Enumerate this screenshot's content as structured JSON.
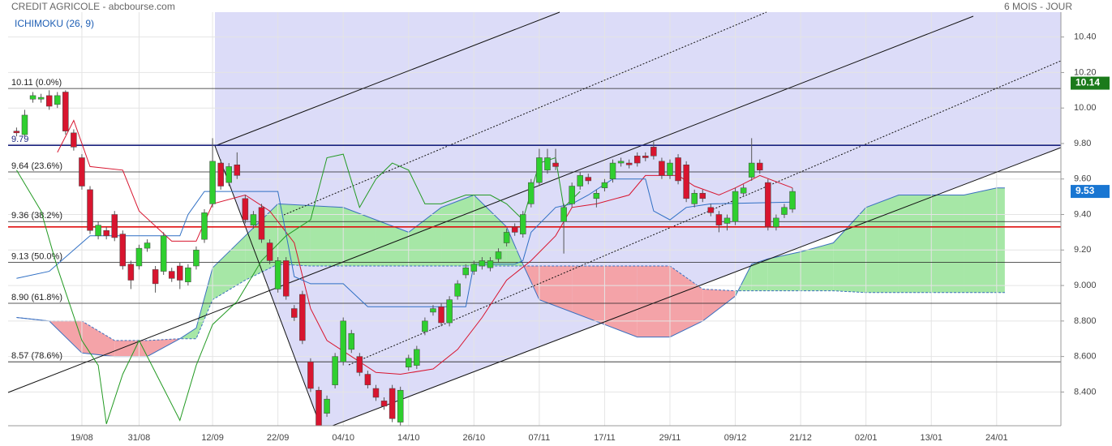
{
  "chart_data": {
    "type": "candlestick",
    "title": "CREDIT AGRICOLE - abcbourse.com",
    "period": "6 MOIS - JOUR",
    "indicator": "ICHIMOKU (26, 9)",
    "categories": [
      null,
      null,
      null,
      null,
      null,
      null,
      null,
      null,
      "19/08",
      null,
      null,
      null,
      null,
      null,
      null,
      "31/08",
      null,
      null,
      null,
      null,
      null,
      null,
      null,
      null,
      "12/09",
      null,
      null,
      null,
      null,
      null,
      null,
      null,
      "22/09",
      null,
      null,
      null,
      null,
      null,
      null,
      null,
      "04/10",
      null,
      null,
      null,
      null,
      null,
      null,
      null,
      "14/10",
      null,
      null,
      null,
      null,
      null,
      null,
      null,
      "26/10",
      null,
      null,
      null,
      null,
      null,
      null,
      null,
      "07/11",
      null,
      null,
      null,
      null,
      null,
      null,
      null,
      "17/11",
      null,
      null,
      null,
      null,
      null,
      null,
      null,
      "29/11",
      null,
      null,
      null,
      null,
      null,
      null,
      null,
      "09/12",
      null,
      null,
      null,
      null,
      null,
      null,
      null,
      "21/12",
      null,
      null,
      null,
      null,
      null,
      null,
      null,
      "02/01",
      null,
      null,
      null,
      null,
      null,
      null,
      null,
      "13/01",
      null,
      null,
      null,
      null,
      null,
      null,
      null,
      "24/01",
      null
    ],
    "open": [
      9.87,
      9.85,
      10.05,
      10.05,
      10.07,
      10.02,
      10.09,
      9.86,
      9.72,
      9.54,
      9.28,
      9.31,
      9.4,
      9.29,
      9.12,
      9.11,
      9.21,
      9.09,
      9.08,
      9.08,
      9.11,
      9.02,
      9.11,
      9.26,
      9.46,
      9.69,
      9.58,
      9.68,
      9.49,
      9.34,
      9.44,
      9.24,
      8.98,
      9.14,
      8.87,
      8.95,
      8.57,
      8.41,
      8.28,
      8.44,
      8.57,
      8.64,
      8.6,
      8.5,
      8.42,
      8.35,
      8.42,
      8.23,
      8.54,
      8.55,
      8.74,
      8.85,
      8.88,
      8.79,
      8.94,
      9.06,
      9.08,
      9.11,
      9.1,
      9.15,
      9.24,
      9.33,
      9.29,
      9.46,
      9.58,
      9.65,
      9.69,
      9.36,
      9.46,
      9.56,
      9.61,
      9.49,
      9.55,
      9.6,
      9.69,
      9.69,
      9.73,
      9.73,
      9.78,
      9.7,
      9.62,
      9.72,
      9.68,
      9.46,
      9.52,
      9.44,
      9.4,
      9.35,
      9.36,
      9.52,
      9.61,
      9.69,
      9.58,
      9.33,
      9.4,
      9.43,
      null,
      null,
      null,
      null,
      null,
      null,
      null,
      null,
      null,
      null,
      null,
      null,
      null,
      null,
      null,
      null,
      null,
      null,
      null,
      null,
      null,
      null,
      null,
      null,
      null,
      null
    ],
    "high": [
      9.89,
      9.99,
      10.09,
      10.08,
      10.1,
      10.09,
      10.1,
      9.88,
      9.74,
      9.56,
      9.36,
      9.33,
      9.42,
      9.31,
      9.14,
      9.23,
      9.26,
      9.11,
      9.3,
      9.1,
      9.13,
      9.12,
      9.22,
      9.43,
      9.83,
      9.71,
      9.69,
      9.75,
      9.51,
      9.42,
      9.46,
      9.26,
      9.16,
      9.16,
      8.89,
      8.97,
      8.59,
      8.43,
      8.38,
      8.62,
      8.82,
      8.75,
      8.62,
      8.52,
      8.44,
      8.37,
      8.44,
      8.43,
      8.61,
      8.66,
      8.82,
      8.89,
      8.9,
      8.94,
      9.03,
      9.12,
      9.14,
      9.16,
      9.16,
      9.21,
      9.32,
      9.35,
      9.42,
      9.6,
      9.77,
      9.77,
      9.77,
      9.46,
      9.58,
      9.64,
      9.63,
      9.54,
      9.6,
      9.71,
      9.72,
      9.71,
      9.75,
      9.75,
      9.81,
      9.72,
      9.71,
      9.74,
      9.7,
      9.54,
      9.54,
      9.46,
      9.42,
      9.4,
      9.55,
      9.57,
      9.83,
      9.71,
      9.6,
      9.4,
      9.46,
      9.55,
      null,
      null,
      null,
      null,
      null,
      null,
      null,
      null,
      null,
      null,
      null,
      null,
      null,
      null,
      null,
      null,
      null,
      null,
      null,
      null,
      null,
      null,
      null,
      null,
      null,
      null
    ],
    "low": [
      9.84,
      9.84,
      10.03,
      10.03,
      9.99,
      10.0,
      9.85,
      9.76,
      9.54,
      9.29,
      9.26,
      9.26,
      9.25,
      9.09,
      8.98,
      9.09,
      9.19,
      8.96,
      9.06,
      9.02,
      8.98,
      9.0,
      9.09,
      9.24,
      9.44,
      9.54,
      9.56,
      9.6,
      9.35,
      9.32,
      9.24,
      9.12,
      8.96,
      8.92,
      8.8,
      8.67,
      8.4,
      8.21,
      8.26,
      8.42,
      8.55,
      8.62,
      8.49,
      8.42,
      8.35,
      8.3,
      8.23,
      8.21,
      8.52,
      8.53,
      8.72,
      8.83,
      8.77,
      8.77,
      8.92,
      9.04,
      9.06,
      9.09,
      9.08,
      9.13,
      9.22,
      9.28,
      9.27,
      9.44,
      9.56,
      9.63,
      9.65,
      9.18,
      9.44,
      9.54,
      9.57,
      9.44,
      9.53,
      9.58,
      9.67,
      9.66,
      9.67,
      9.7,
      9.71,
      9.6,
      9.6,
      9.57,
      9.47,
      9.44,
      9.47,
      9.39,
      9.3,
      9.31,
      9.34,
      9.5,
      9.59,
      9.63,
      9.31,
      9.31,
      9.38,
      9.41,
      null,
      null,
      null,
      null,
      null,
      null,
      null,
      null,
      null,
      null,
      null,
      null,
      null,
      null,
      null,
      null,
      null,
      null,
      null,
      null,
      null,
      null,
      null,
      null,
      null,
      null
    ],
    "close": [
      9.86,
      9.96,
      10.07,
      10.06,
      10.01,
      10.07,
      9.87,
      9.78,
      9.56,
      9.31,
      9.34,
      9.28,
      9.27,
      9.11,
      9.03,
      9.21,
      9.24,
      9.01,
      9.28,
      9.04,
      9.03,
      9.1,
      9.2,
      9.41,
      9.7,
      9.56,
      9.67,
      9.62,
      9.37,
      9.4,
      9.26,
      9.14,
      9.14,
      8.94,
      8.82,
      8.69,
      8.42,
      8.21,
      8.36,
      8.6,
      8.8,
      8.73,
      8.51,
      8.44,
      8.37,
      8.32,
      8.25,
      8.41,
      8.59,
      8.64,
      8.8,
      8.87,
      8.79,
      8.92,
      9.01,
      9.1,
      9.12,
      9.14,
      9.14,
      9.19,
      9.3,
      9.3,
      9.4,
      9.58,
      9.72,
      9.72,
      9.67,
      9.44,
      9.56,
      9.62,
      9.59,
      9.52,
      9.58,
      9.69,
      9.7,
      9.68,
      9.69,
      9.72,
      9.73,
      9.62,
      9.69,
      9.59,
      9.49,
      9.52,
      9.49,
      9.41,
      9.34,
      9.38,
      9.53,
      9.55,
      9.69,
      9.65,
      9.33,
      9.38,
      9.44,
      9.53,
      null,
      null,
      null,
      null,
      null,
      null,
      null,
      null,
      null,
      null,
      null,
      null,
      null,
      null,
      null,
      null,
      null,
      null,
      null,
      null,
      null,
      null,
      null,
      null,
      null,
      null
    ],
    "up_color": "#2fcf2f",
    "down_color": "#d8152f",
    "indicators": [
      {
        "color": "#d8152f",
        "x": [
          5,
          7,
          9,
          13,
          15,
          19,
          22,
          24,
          28,
          31,
          34,
          36,
          38,
          41,
          44,
          47,
          51,
          54,
          57,
          60,
          63,
          66,
          68,
          71,
          75,
          77,
          81,
          83,
          86,
          88,
          91,
          95
        ],
        "values": [
          9.75,
          9.93,
          9.67,
          9.65,
          9.42,
          9.25,
          9.25,
          9.46,
          9.51,
          9.42,
          9.24,
          8.87,
          8.69,
          8.6,
          8.51,
          8.5,
          8.53,
          8.64,
          8.82,
          9.03,
          9.14,
          9.28,
          9.44,
          9.46,
          9.51,
          9.62,
          9.62,
          9.56,
          9.51,
          9.55,
          9.62,
          9.55
        ]
      },
      {
        "color": "#2f6fc4",
        "x": [
          0,
          4,
          9,
          20,
          21,
          23,
          32,
          34,
          36,
          40,
          43,
          55,
          56,
          61,
          62,
          63,
          66,
          68,
          70,
          73,
          77,
          78,
          80,
          82,
          85,
          95
        ],
        "values": [
          9.04,
          9.08,
          9.28,
          9.28,
          9.4,
          9.53,
          9.53,
          9.05,
          9.01,
          9.01,
          8.88,
          8.88,
          9.12,
          9.12,
          9.14,
          9.3,
          9.44,
          9.46,
          9.51,
          9.6,
          9.6,
          9.42,
          9.37,
          9.44,
          9.46,
          9.47
        ]
      },
      {
        "color": "#239a23",
        "x": [
          0,
          3,
          5,
          8,
          10,
          11,
          13,
          15,
          18,
          20,
          22,
          24,
          27,
          30,
          33,
          36,
          38,
          40,
          42,
          44,
          46,
          48,
          50,
          52,
          55,
          58,
          60,
          62,
          64,
          66,
          67,
          69
        ],
        "values": [
          9.65,
          9.42,
          9.1,
          8.69,
          8.55,
          8.22,
          8.5,
          8.69,
          8.42,
          8.24,
          8.55,
          8.78,
          8.91,
          9.14,
          9.28,
          9.37,
          9.72,
          9.74,
          9.44,
          9.6,
          9.69,
          9.65,
          9.46,
          9.46,
          9.51,
          9.51,
          9.46,
          9.37,
          9.69,
          9.72,
          9.44,
          9.53
        ]
      }
    ],
    "cloud": {
      "x": [
        0,
        4,
        8,
        12,
        16,
        20,
        22,
        24,
        28,
        32,
        36,
        40,
        44,
        48,
        52,
        56,
        60,
        62,
        64,
        68,
        72,
        76,
        80,
        84,
        88,
        90,
        92,
        96,
        100,
        104,
        108,
        112,
        116,
        120,
        121
      ],
      "span_a": [
        8.82,
        8.8,
        8.62,
        8.6,
        8.6,
        8.7,
        8.76,
        9.1,
        9.28,
        9.46,
        9.45,
        9.44,
        9.37,
        9.3,
        9.44,
        9.51,
        9.33,
        9.12,
        8.92,
        8.85,
        8.78,
        8.71,
        8.71,
        8.8,
        8.94,
        9.12,
        9.15,
        9.19,
        9.24,
        9.44,
        9.51,
        9.51,
        9.51,
        9.55,
        9.55
      ],
      "span_b": [
        8.82,
        8.8,
        8.8,
        8.69,
        8.69,
        8.7,
        8.7,
        8.92,
        9.03,
        9.12,
        9.11,
        9.11,
        9.11,
        9.11,
        9.11,
        9.11,
        9.11,
        9.11,
        9.11,
        9.11,
        9.11,
        9.11,
        9.11,
        8.98,
        8.97,
        8.97,
        8.97,
        8.97,
        8.97,
        8.96,
        8.96,
        8.96,
        8.96,
        8.96,
        8.96
      ],
      "up_color": "#a6e7a6",
      "down_color": "#f4a3a8",
      "line_color": "#3b6fc0"
    },
    "levels": [
      {
        "value": 10.11,
        "label": "10.11  (0.0%)",
        "color": "#222222"
      },
      {
        "value": 9.79,
        "label": "9.79",
        "color": "#1a237e"
      },
      {
        "value": 9.64,
        "label": "9.64  (23.6%)",
        "color": "#222222"
      },
      {
        "value": 9.36,
        "label": "9.36  (38.2%)",
        "color": "#222222"
      },
      {
        "value": 9.33,
        "color": "#e01010"
      },
      {
        "value": 9.13,
        "label": "9.13  (50.0%)",
        "color": "#222222"
      },
      {
        "value": 8.9,
        "label": "8.90  (61.8%)",
        "color": "#222222"
      },
      {
        "value": 8.57,
        "label": "8.57  (78.6%)",
        "color": "#222222"
      }
    ],
    "badges": [
      {
        "value": 10.14,
        "color": "#1b7a1b"
      },
      {
        "value": 9.53,
        "color": "#1976d2"
      }
    ],
    "ylim": [
      8.21,
      10.54
    ],
    "yticks": [
      {
        "value": 10.4,
        "label": "10.40"
      },
      {
        "value": 10.2,
        "label": "10.20"
      },
      {
        "value": 10,
        "label": "10.00"
      },
      {
        "value": 9.8,
        "label": "9.80"
      },
      {
        "value": 9.6,
        "label": "9.60"
      },
      {
        "value": 9.4,
        "label": "9.40"
      },
      {
        "value": 9.2,
        "label": "9.20"
      },
      {
        "value": 9,
        "label": "9.000"
      },
      {
        "value": 8.8,
        "label": "8.800"
      },
      {
        "value": 8.6,
        "label": "8.600"
      },
      {
        "value": 8.4,
        "label": "8.400"
      }
    ],
    "grid": true
  }
}
